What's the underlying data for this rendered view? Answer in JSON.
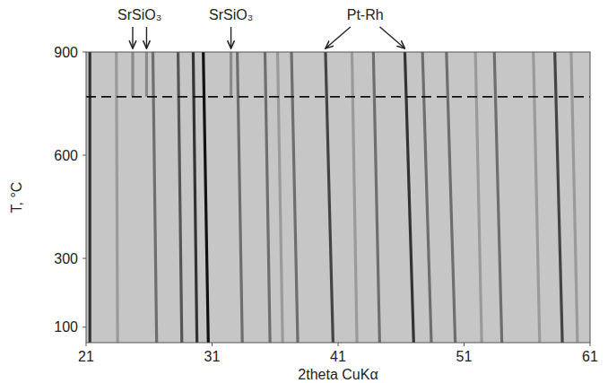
{
  "chart_data": {
    "type": "line",
    "x_label": "2theta CuKα",
    "y_label": "T, °C",
    "xlim": [
      21,
      61
    ],
    "ylim": [
      55,
      900
    ],
    "xticks": [
      21,
      31,
      41,
      51,
      61
    ],
    "yticks": [
      100,
      300,
      600,
      900
    ],
    "grid": false,
    "reference_lines": [
      {
        "y": 770,
        "line_style": "dashed",
        "color": "#111111"
      }
    ],
    "annotations": [
      {
        "text": "SrSiO₃",
        "x": [
          24.7,
          25.8
        ]
      },
      {
        "text": "SrSiO₃",
        "x": [
          32.5
        ]
      },
      {
        "text": "Pt-Rh",
        "x": [
          40.0,
          46.3
        ]
      }
    ],
    "series": [
      {
        "color": "#333333",
        "x": [
          21.3,
          21.3
        ],
        "values": [
          55,
          900
        ]
      },
      {
        "color": "#9a9a9a",
        "x": [
          23.5,
          23.4
        ],
        "values": [
          55,
          900
        ]
      },
      {
        "color": "#8a8a8a",
        "x": [
          24.7,
          24.7
        ],
        "values": [
          770,
          900
        ]
      },
      {
        "color": "#8a8a8a",
        "x": [
          25.8,
          25.8
        ],
        "values": [
          770,
          900
        ]
      },
      {
        "color": "#6e6e6e",
        "x": [
          26.6,
          26.3
        ],
        "values": [
          55,
          900
        ]
      },
      {
        "color": "#555555",
        "x": [
          28.6,
          28.3
        ],
        "values": [
          55,
          900
        ]
      },
      {
        "color": "#333333",
        "x": [
          29.8,
          29.5
        ],
        "values": [
          55,
          900
        ]
      },
      {
        "color": "#111111",
        "x": [
          30.7,
          30.3
        ],
        "values": [
          55,
          900
        ]
      },
      {
        "color": "#8a8a8a",
        "x": [
          32.5,
          32.5
        ],
        "values": [
          770,
          900
        ]
      },
      {
        "color": "#6e6e6e",
        "x": [
          33.4,
          33.0
        ],
        "values": [
          55,
          900
        ]
      },
      {
        "color": "#6e6e6e",
        "x": [
          35.6,
          35.2
        ],
        "values": [
          55,
          900
        ]
      },
      {
        "color": "#9a9a9a",
        "x": [
          36.6,
          36.2
        ],
        "values": [
          55,
          900
        ]
      },
      {
        "color": "#6e6e6e",
        "x": [
          37.8,
          37.3
        ],
        "values": [
          55,
          900
        ]
      },
      {
        "color": "#444444",
        "x": [
          40.6,
          40.0
        ],
        "values": [
          55,
          900
        ]
      },
      {
        "color": "#9a9a9a",
        "x": [
          42.5,
          42.1
        ],
        "values": [
          55,
          900
        ]
      },
      {
        "color": "#6e6e6e",
        "x": [
          44.3,
          43.8
        ],
        "values": [
          55,
          900
        ]
      },
      {
        "color": "#333333",
        "x": [
          47.0,
          46.3
        ],
        "values": [
          55,
          900
        ]
      },
      {
        "color": "#6e6e6e",
        "x": [
          48.4,
          47.7
        ],
        "values": [
          55,
          900
        ]
      },
      {
        "color": "#6e6e6e",
        "x": [
          50.3,
          49.6
        ],
        "values": [
          55,
          900
        ]
      },
      {
        "color": "#9a9a9a",
        "x": [
          52.4,
          51.9
        ],
        "values": [
          55,
          900
        ]
      },
      {
        "color": "#6e6e6e",
        "x": [
          54.0,
          53.4
        ],
        "values": [
          55,
          900
        ]
      },
      {
        "color": "#9a9a9a",
        "x": [
          57.0,
          56.5
        ],
        "values": [
          55,
          900
        ]
      },
      {
        "color": "#444444",
        "x": [
          58.8,
          58.2
        ],
        "values": [
          55,
          900
        ]
      },
      {
        "color": "#9a9a9a",
        "x": [
          60.0,
          59.5
        ],
        "values": [
          55,
          900
        ]
      }
    ]
  }
}
